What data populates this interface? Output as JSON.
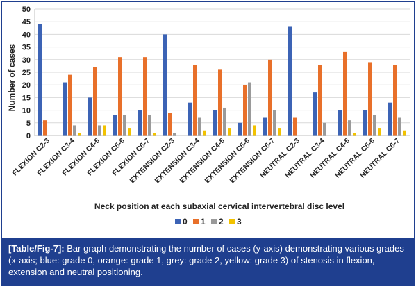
{
  "chart_data": {
    "type": "bar",
    "categories": [
      "FLEXION C2-3",
      "FLEXION C3-4",
      "FLEXION C4-5",
      "FLEXION C5-6",
      "FLEXION C6-7",
      "EXTENSION C2-3",
      "EXTENSION C3-4",
      "EXTENSION C4-5",
      "EXTENSION C5-6",
      "EXTENSION C6-7",
      "NEUTRAL C2-3",
      "NEUTRAL C3-4",
      "NEUTRAL C4-5",
      "NEUTRAL C5-6",
      "NEUTRAL C6-7"
    ],
    "series": [
      {
        "name": "0",
        "color": "#3c63b5",
        "values": [
          44,
          21,
          15,
          8,
          10,
          40,
          13,
          10,
          5,
          7,
          43,
          17,
          10,
          10,
          13
        ]
      },
      {
        "name": "1",
        "color": "#e8702a",
        "values": [
          6,
          24,
          27,
          31,
          31,
          9,
          28,
          26,
          20,
          30,
          7,
          28,
          33,
          29,
          28
        ]
      },
      {
        "name": "2",
        "color": "#9a9a9a",
        "values": [
          0,
          4,
          4,
          8,
          8,
          1,
          7,
          11,
          21,
          10,
          0,
          5,
          6,
          8,
          7
        ]
      },
      {
        "name": "3",
        "color": "#f2c200",
        "values": [
          0,
          1,
          4,
          3,
          1,
          0,
          2,
          3,
          4,
          3,
          0,
          0,
          1,
          3,
          2
        ]
      }
    ],
    "ylabel": "Number of cases",
    "xlabel": "Neck position at each subaxial cervical intervertebral disc level",
    "ylim": [
      0,
      50
    ],
    "yticks": [
      0,
      5,
      10,
      15,
      20,
      25,
      30,
      35,
      40,
      45,
      50
    ],
    "grid": true,
    "legend_position": "bottom"
  },
  "caption": {
    "label": "[Table/Fig-7]:",
    "text": " Bar graph demonstrating the number of cases (y-axis) demonstrating various grades (x-axis; blue: grade 0, orange: grade 1, grey: grade 2, yellow: grade 3) of stenosis in flexion, extension and neutral positioning."
  }
}
